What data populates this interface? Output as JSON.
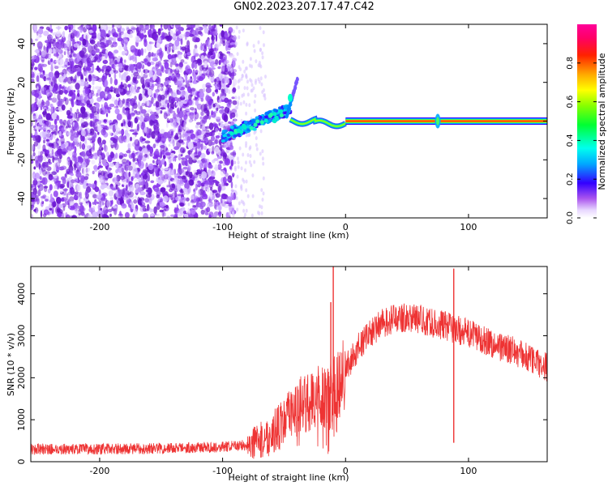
{
  "figure": {
    "title": "GN02.2023.207.17.47.C42"
  },
  "chart_data": [
    {
      "type": "heatmap",
      "title": "",
      "xlabel": "Height of straight line (km)",
      "ylabel": "Frequency (Hz)",
      "xlim": [
        -256,
        164
      ],
      "ylim": [
        -50,
        50
      ],
      "xticks": [
        -200,
        -100,
        0,
        100
      ],
      "yticks": [
        -40,
        -20,
        0,
        20,
        40
      ],
      "colorbar": {
        "label": "Normalized spectral amplitude",
        "range": [
          0,
          1
        ],
        "ticks": [
          0.0,
          0.2,
          0.4,
          0.6,
          0.8
        ],
        "colormap": "hsv-like: white, purple, blue, cyan, green, yellow, orange, red, pink"
      },
      "features": [
        {
          "desc": "random purple noise",
          "x_range": [
            -256,
            -90
          ],
          "y_range": [
            -50,
            50
          ],
          "amplitude": 0.15
        },
        {
          "desc": "sparse faint noise",
          "x_range": [
            -90,
            -65
          ],
          "y_range": [
            -50,
            50
          ],
          "amplitude": 0.05
        },
        {
          "desc": "rising blue/cyan branch",
          "x_range": [
            -100,
            -45
          ],
          "y_range": [
            -10,
            10
          ],
          "amplitude": 0.3
        },
        {
          "desc": "upward spike",
          "x_range": [
            -45,
            -38
          ],
          "y_range": [
            5,
            22
          ],
          "amplitude": 0.3
        },
        {
          "desc": "wavy green segment",
          "x_range": [
            -45,
            0
          ],
          "y_range": [
            -3,
            4
          ],
          "amplitude": 0.55
        },
        {
          "desc": "steady red/orange line",
          "x_range": [
            0,
            164
          ],
          "y_range": [
            -1,
            1
          ],
          "amplitude": 0.9
        },
        {
          "desc": "bump",
          "x_range": [
            70,
            80
          ],
          "y_range": [
            -5,
            5
          ],
          "amplitude": 0.4
        }
      ]
    },
    {
      "type": "line",
      "title": "",
      "xlabel": "Height of straight line (km)",
      "ylabel": "SNR (10 * v/v)",
      "xlim": [
        -256,
        164
      ],
      "ylim": [
        0,
        4650
      ],
      "xticks": [
        -200,
        -100,
        0,
        100
      ],
      "yticks": [
        0,
        1000,
        2000,
        3000,
        4000
      ],
      "color": "#ee3333",
      "series": [
        {
          "envelope_x": [
            -256,
            -200,
            -150,
            -100,
            -80,
            -65,
            -55,
            -45,
            -35,
            -25,
            -15,
            -5,
            0,
            10,
            20,
            30,
            40,
            50,
            60,
            70,
            80,
            90,
            100,
            110,
            120,
            130,
            140,
            150,
            160,
            164
          ],
          "envelope_y": [
            300,
            300,
            320,
            350,
            400,
            550,
            800,
            1100,
            1400,
            1500,
            1550,
            1800,
            2200,
            2700,
            3050,
            3300,
            3400,
            3450,
            3400,
            3300,
            3250,
            3150,
            3050,
            2950,
            2800,
            2700,
            2600,
            2450,
            2300,
            2250
          ],
          "spikes": [
            {
              "x": -10,
              "y": 4650
            },
            {
              "x": -12,
              "y": 3800
            },
            {
              "x": 88,
              "y": 4600
            },
            {
              "x": 88,
              "y": 450
            }
          ]
        }
      ]
    }
  ]
}
